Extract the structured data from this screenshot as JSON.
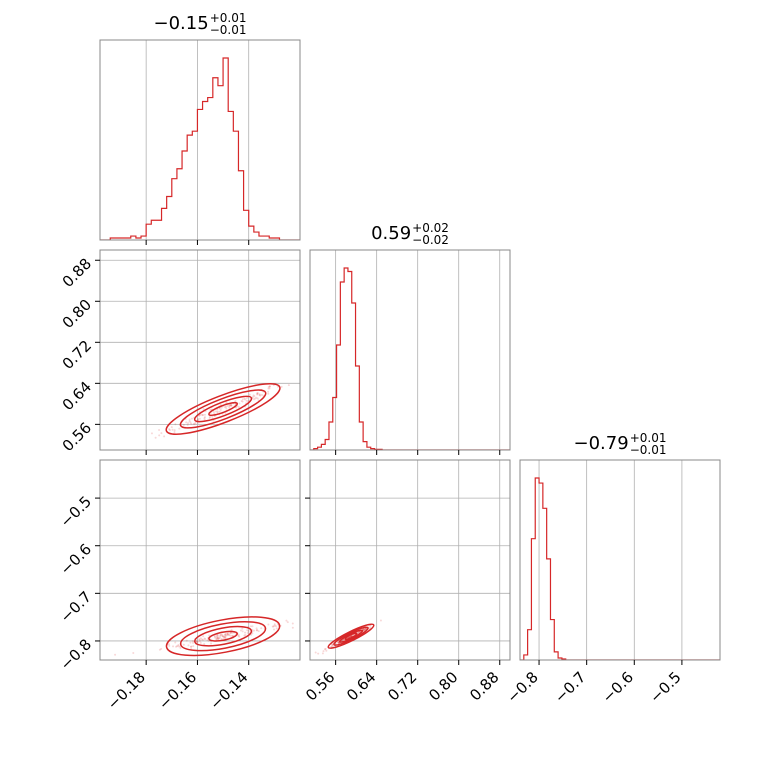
{
  "chart_data": {
    "type": "corner",
    "color": "#d62728",
    "parameters": [
      {
        "title": {
          "median": "−0.15",
          "plus": "+0.01",
          "minus": "−0.01"
        },
        "range": [
          -0.198,
          -0.12
        ],
        "ticks": [
          -0.18,
          -0.16,
          -0.14
        ],
        "tick_labels": [
          "−0.18",
          "−0.16",
          "−0.14"
        ],
        "hist": {
          "edges_start": -0.198,
          "bin_width": 0.002,
          "counts": [
            0,
            0,
            1,
            1,
            1,
            1,
            2,
            1,
            2,
            8,
            10,
            10,
            16,
            22,
            31,
            36,
            45,
            53,
            55,
            66,
            70,
            72,
            82,
            78,
            92,
            65,
            55,
            35,
            15,
            7,
            4,
            2,
            2,
            1,
            1,
            0,
            0,
            0,
            0
          ]
        }
      },
      {
        "title": {
          "median": "0.59",
          "plus": "+0.02",
          "minus": "−0.02"
        },
        "range": [
          0.51,
          0.9
        ],
        "ticks": [
          0.56,
          0.64,
          0.72,
          0.8,
          0.88
        ],
        "tick_labels": [
          "0.56",
          "0.64",
          "0.72",
          "0.80",
          "0.88"
        ],
        "hist": {
          "edges_start": 0.51,
          "bin_width": 0.0074,
          "counts": [
            0,
            2,
            4,
            8,
            15,
            40,
            75,
            150,
            240,
            260,
            255,
            210,
            120,
            40,
            12,
            4,
            2,
            1,
            1,
            0,
            0,
            0,
            0,
            0,
            0,
            0,
            0,
            0,
            0,
            0,
            0,
            0,
            0,
            0,
            0,
            0,
            0,
            0,
            0,
            0,
            0,
            0,
            0,
            0,
            0,
            0,
            0,
            0,
            0,
            0,
            0,
            0,
            0
          ]
        }
      },
      {
        "title": {
          "median": "−0.79",
          "plus": "+0.01",
          "minus": "−0.01"
        },
        "range": [
          -0.84,
          -0.42
        ],
        "ticks": [
          -0.8,
          -0.7,
          -0.6,
          -0.5
        ],
        "tick_labels": [
          "−0.8",
          "−0.7",
          "−0.6",
          "−0.5"
        ],
        "hist": {
          "edges_start": -0.84,
          "bin_width": 0.008,
          "counts": [
            0,
            5,
            30,
            120,
            180,
            175,
            150,
            100,
            40,
            8,
            2,
            1,
            0,
            0,
            0,
            0,
            0,
            0,
            0,
            0,
            0,
            0,
            0,
            0,
            0,
            0,
            0,
            0,
            0,
            0,
            0,
            0,
            0,
            0,
            0,
            0,
            0,
            0,
            0,
            0,
            0,
            0,
            0,
            0,
            0,
            0,
            0,
            0,
            0,
            0,
            0,
            0,
            0
          ]
        }
      }
    ],
    "correlations": [
      {
        "pair": [
          0,
          1
        ],
        "center": [
          -0.15,
          0.59
        ],
        "sd": [
          0.011,
          0.022
        ],
        "rho": 0.97
      },
      {
        "pair": [
          0,
          2
        ],
        "center": [
          -0.15,
          -0.79
        ],
        "sd": [
          0.011,
          0.012
        ],
        "rho": 0.95
      },
      {
        "pair": [
          1,
          2
        ],
        "center": [
          0.59,
          -0.79
        ],
        "sd": [
          0.022,
          0.012
        ],
        "rho": 0.98
      }
    ],
    "grid": true
  }
}
